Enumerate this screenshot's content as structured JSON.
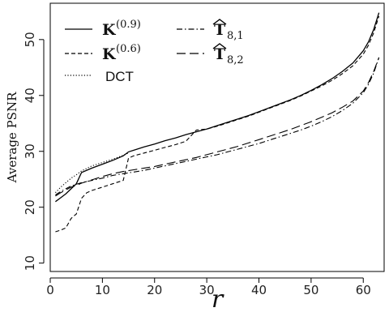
{
  "chart_data": {
    "type": "line",
    "xlabel": "r",
    "ylabel": "Average PSNR",
    "xlim": [
      0,
      64
    ],
    "ylim": [
      8.5,
      56.5
    ],
    "xticks": [
      0,
      10,
      20,
      30,
      40,
      50,
      60
    ],
    "yticks": [
      10,
      20,
      30,
      40,
      50
    ],
    "grid": false,
    "legend_placement": "top-left",
    "legend": [
      {
        "id": "k09",
        "main": "K",
        "sup": "(0.9)",
        "sub": "",
        "hat": false,
        "dash": "solid"
      },
      {
        "id": "k06",
        "main": "K",
        "sup": "(0.6)",
        "sub": "",
        "hat": false,
        "dash": "short-dash"
      },
      {
        "id": "dct",
        "main": "DCT",
        "sup": "",
        "sub": "",
        "hat": false,
        "dash": "dotted"
      },
      {
        "id": "t81",
        "main": "T",
        "sup": "",
        "sub": "8,1",
        "hat": true,
        "dash": "dash-dot"
      },
      {
        "id": "t82",
        "main": "T",
        "sup": "",
        "sub": "8,2",
        "hat": true,
        "dash": "long-dash"
      }
    ],
    "series": [
      {
        "id": "k09",
        "color": "#000000",
        "dash": "solid",
        "x": [
          1,
          2,
          3,
          4,
          5,
          6,
          8,
          10,
          12,
          14,
          15,
          16,
          18,
          20,
          22,
          24,
          26,
          28,
          30,
          32,
          34,
          36,
          38,
          40,
          42,
          44,
          46,
          48,
          50,
          52,
          54,
          56,
          58,
          60,
          61,
          62,
          63
        ],
        "y": [
          21.0,
          21.7,
          22.4,
          23.3,
          24.2,
          26.2,
          27.0,
          27.7,
          28.4,
          29.2,
          29.9,
          30.2,
          30.8,
          31.3,
          31.9,
          32.4,
          33.0,
          33.5,
          34.0,
          34.6,
          35.2,
          35.8,
          36.4,
          37.1,
          37.8,
          38.5,
          39.2,
          40.0,
          40.9,
          41.9,
          43.0,
          44.3,
          45.8,
          48.0,
          49.6,
          51.8,
          54.8
        ]
      },
      {
        "id": "k06",
        "color": "#000000",
        "dash": "short-dash",
        "x": [
          1,
          2,
          3,
          4,
          5,
          6,
          7,
          8,
          10,
          12,
          14,
          15,
          16,
          18,
          20,
          22,
          24,
          26,
          28,
          30,
          32,
          34,
          36,
          38,
          40,
          42,
          44,
          46,
          48,
          50,
          52,
          54,
          56,
          58,
          60,
          61,
          62,
          63
        ],
        "y": [
          15.6,
          15.9,
          16.3,
          18.0,
          18.8,
          21.6,
          22.6,
          23.0,
          23.6,
          24.2,
          24.8,
          28.8,
          29.2,
          29.7,
          30.2,
          30.7,
          31.2,
          31.8,
          33.8,
          34.0,
          34.5,
          35.1,
          35.7,
          36.3,
          37.0,
          37.7,
          38.4,
          39.1,
          39.9,
          40.8,
          41.7,
          42.7,
          43.9,
          45.3,
          47.4,
          49.0,
          51.2,
          54.2
        ]
      },
      {
        "id": "dct",
        "color": "#000000",
        "dash": "dotted",
        "x": [
          1,
          2,
          3,
          4,
          5,
          6,
          8,
          10,
          12,
          14,
          15
        ],
        "y": [
          22.6,
          23.6,
          24.4,
          25.2,
          25.8,
          26.5,
          27.4,
          28.0,
          28.6,
          29.3,
          29.7
        ]
      },
      {
        "id": "t81",
        "color": "#000000",
        "dash": "dash-dot",
        "x": [
          1,
          2,
          3,
          4,
          5,
          6,
          8,
          10,
          12,
          14,
          16,
          18,
          20,
          22,
          24,
          26,
          28,
          30,
          32,
          34,
          36,
          38,
          40,
          42,
          44,
          46,
          48,
          50,
          52,
          54,
          56,
          58,
          60,
          61,
          62,
          63
        ],
        "y": [
          22.2,
          22.8,
          23.3,
          23.8,
          24.1,
          24.4,
          24.8,
          25.2,
          25.7,
          26.0,
          26.3,
          26.6,
          27.0,
          27.4,
          27.8,
          28.2,
          28.6,
          29.0,
          29.4,
          29.9,
          30.4,
          30.9,
          31.4,
          32.0,
          32.6,
          33.2,
          33.8,
          34.5,
          35.3,
          36.2,
          37.3,
          38.6,
          40.5,
          42.0,
          44.0,
          46.8
        ]
      },
      {
        "id": "t82",
        "color": "#000000",
        "dash": "long-dash",
        "x": [
          1,
          2,
          3,
          4,
          5,
          6,
          8,
          10,
          12,
          14,
          16,
          18,
          20,
          22,
          24,
          26,
          28,
          30,
          32,
          34,
          36,
          38,
          40,
          42,
          44,
          46,
          48,
          50,
          52,
          54,
          56,
          58,
          60,
          61,
          62,
          63
        ],
        "y": [
          22.0,
          22.6,
          23.1,
          23.6,
          23.9,
          24.3,
          24.9,
          25.5,
          26.0,
          26.4,
          26.7,
          27.0,
          27.3,
          27.7,
          28.1,
          28.5,
          28.9,
          29.4,
          29.9,
          30.4,
          30.9,
          31.5,
          32.1,
          32.7,
          33.3,
          33.9,
          34.6,
          35.3,
          36.1,
          36.9,
          37.9,
          39.0,
          40.8,
          42.3,
          44.3,
          46.8
        ]
      }
    ]
  }
}
